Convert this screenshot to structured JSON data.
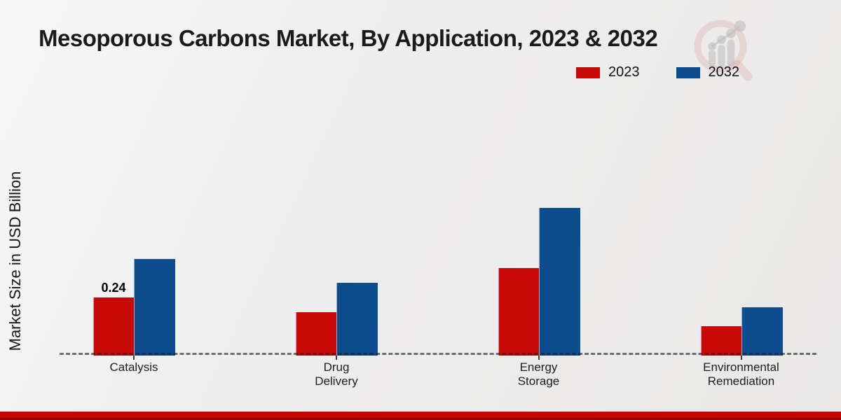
{
  "title": "Mesoporous Carbons Market, By Application, 2023 & 2032",
  "ylabel": "Market Size in USD Billion",
  "legend": [
    {
      "label": "2023",
      "color": "#c90808"
    },
    {
      "label": "2032",
      "color": "#0d4d8d"
    }
  ],
  "colors": {
    "series_2023": "#c90808",
    "series_2032": "#0d4d8d",
    "footer_bar": "#c50404",
    "baseline_dash": "#3c3c3c",
    "background": "#eeedec"
  },
  "watermark_icon": "magnifier-bar-chart-logo",
  "chart_data": {
    "type": "bar",
    "title": "Mesoporous Carbons Market, By Application, 2023 & 2032",
    "xlabel": "",
    "ylabel": "Market Size in USD Billion",
    "categories": [
      "Catalysis",
      "Drug Delivery",
      "Energy Storage",
      "Environmental Remediation"
    ],
    "category_lines": [
      [
        "Catalysis"
      ],
      [
        "Drug",
        "Delivery"
      ],
      [
        "Energy",
        "Storage"
      ],
      [
        "Environmental",
        "Remediation"
      ]
    ],
    "series": [
      {
        "name": "2023",
        "color": "#c90808",
        "values": [
          0.24,
          0.18,
          0.36,
          0.12
        ]
      },
      {
        "name": "2032",
        "color": "#0d4d8d",
        "values": [
          0.4,
          0.3,
          0.61,
          0.2
        ]
      }
    ],
    "value_labels": [
      {
        "series": "2023",
        "category": "Catalysis",
        "text": "0.24"
      }
    ],
    "ylim": [
      0,
      0.65
    ],
    "grid": false,
    "y_axis_ticks_visible": false,
    "baseline_style": "dashed",
    "legend_position": "top-right"
  }
}
